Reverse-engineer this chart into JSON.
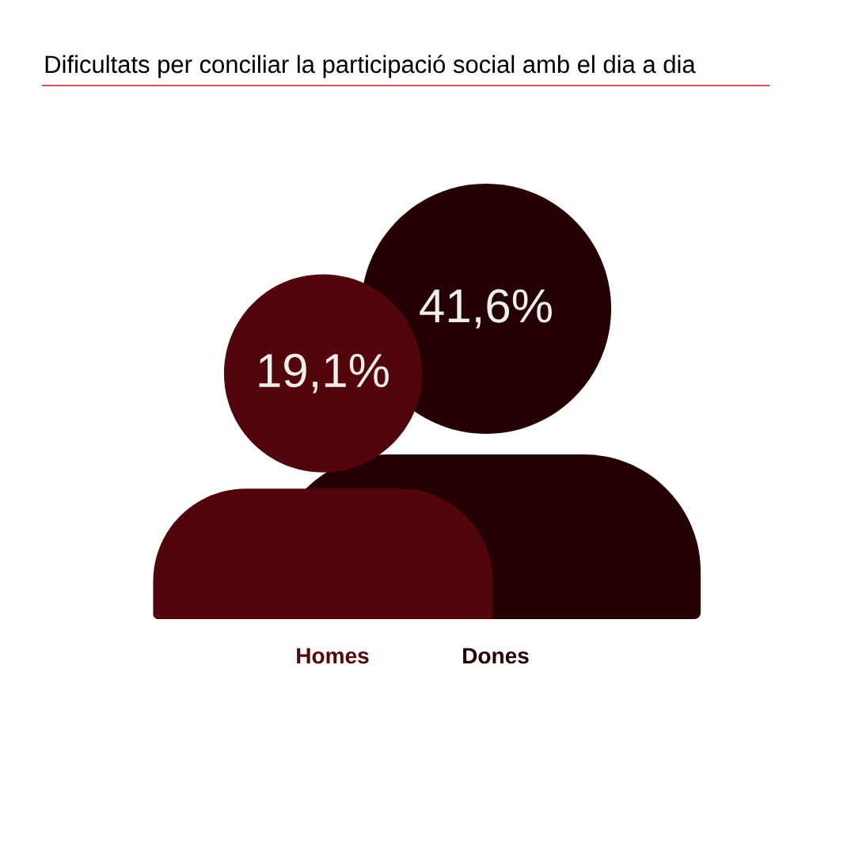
{
  "chart_data": {
    "type": "other",
    "title": "Dificultats per conciliar la participació social amb el dia a dia",
    "categories": [
      "Homes",
      "Dones"
    ],
    "values": [
      19.1,
      41.6
    ],
    "value_labels": [
      "19,1%",
      "41,6%"
    ],
    "colors": [
      "#52050a",
      "#240003"
    ]
  }
}
